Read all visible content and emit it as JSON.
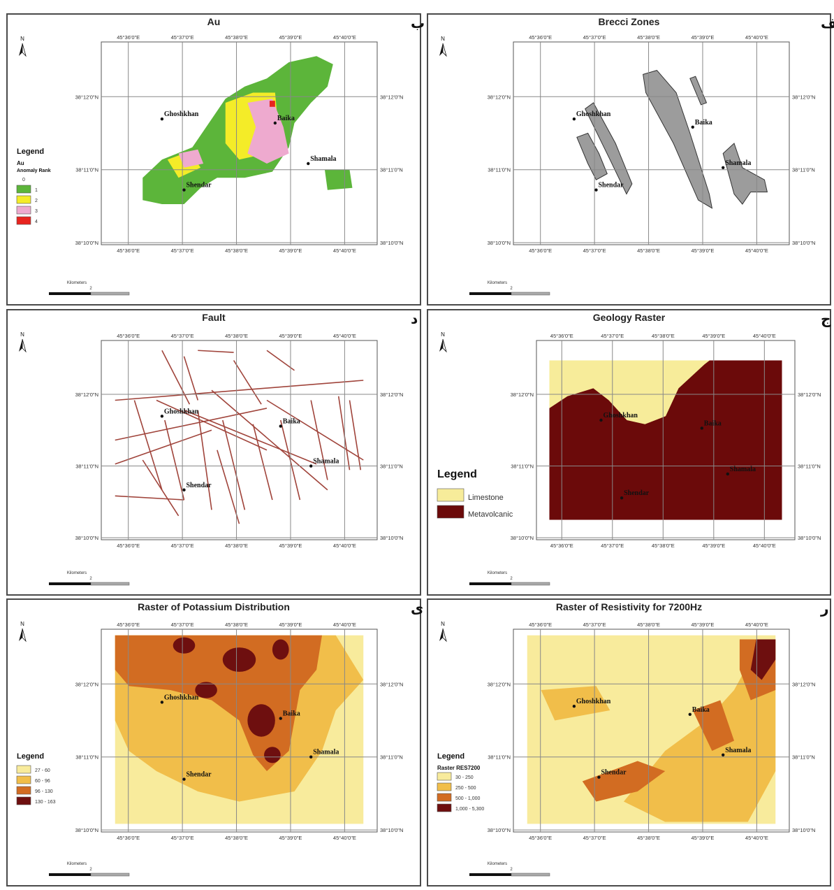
{
  "panels": [
    {
      "id": "au",
      "title": "Au",
      "letter": "ب",
      "x_ticks": [
        "45°36'0\"E",
        "45°37'0\"E",
        "45°38'0\"E",
        "45°39'0\"E",
        "45°40'0\"E"
      ],
      "y_ticks": [
        "38°12'0\"N",
        "38°11'0\"N",
        "38°10'0\"N"
      ],
      "towns": [
        "Ghoshkhan",
        "Baika",
        "Shamala",
        "Shendar"
      ],
      "north_label": "N",
      "scalebar_label": "Kilometers",
      "scalebar_value": "2",
      "legend": {
        "title": "Legend",
        "subtitle": "Au",
        "subtitle2": "Anomaly Rank",
        "items": [
          {
            "label": "0",
            "color": ""
          },
          {
            "label": "1",
            "color": "#5cb53a"
          },
          {
            "label": "2",
            "color": "#f4ec28"
          },
          {
            "label": "3",
            "color": "#eeaacf"
          },
          {
            "label": "4",
            "color": "#e8241f"
          }
        ]
      }
    },
    {
      "id": "breccia",
      "title": "Brecci Zones",
      "letter": "الف",
      "x_ticks": [
        "45°36'0\"E",
        "45°37'0\"E",
        "45°38'0\"E",
        "45°39'0\"E",
        "45°40'0\"E"
      ],
      "y_ticks": [
        "38°12'0\"N",
        "38°11'0\"N",
        "38°10'0\"N"
      ],
      "towns": [
        "Ghoshkhan",
        "Baika",
        "Shamala",
        "Shendar"
      ],
      "north_label": "N",
      "scalebar_label": "Kilometers",
      "scalebar_value": "2",
      "fill_color": "#9c9c9c"
    },
    {
      "id": "fault",
      "title": "Fault",
      "letter": "د",
      "x_ticks": [
        "45°36'0\"E",
        "45°37'0\"E",
        "45°38'0\"E",
        "45°39'0\"E",
        "45°40'0\"E"
      ],
      "y_ticks": [
        "38°12'0\"N",
        "38°11'0\"N",
        "38°10'0\"N"
      ],
      "towns": [
        "Ghoshkhan",
        "Baika",
        "Shamala",
        "Shendar"
      ],
      "north_label": "N",
      "scalebar_label": "Kilometers",
      "scalebar_value": "2",
      "line_color": "#a0443b"
    },
    {
      "id": "geology",
      "title": "Geology Raster",
      "letter": "ج",
      "x_ticks": [
        "45°36'0\"E",
        "45°37'0\"E",
        "45°38'0\"E",
        "45°39'0\"E",
        "45°40'0\"E"
      ],
      "y_ticks": [
        "38°12'0\"N",
        "38°11'0\"N",
        "38°10'0\"N"
      ],
      "towns": [
        "Ghoshkhan",
        "Baika",
        "Shamala",
        "Shendar"
      ],
      "north_label": "N",
      "scalebar_label": "Kilometers",
      "scalebar_value": "2",
      "legend": {
        "title": "Legend",
        "items": [
          {
            "label": "Limestone",
            "color": "#f7ec9a"
          },
          {
            "label": "Metavolcanic",
            "color": "#6b0a0a"
          }
        ]
      }
    },
    {
      "id": "potassium",
      "title": "Raster of Potassium Distribution",
      "letter": "ى",
      "x_ticks": [
        "45°36'0\"E",
        "45°37'0\"E",
        "45°38'0\"E",
        "45°39'0\"E",
        "45°40'0\"E"
      ],
      "y_ticks": [
        "38°12'0\"N",
        "38°11'0\"N",
        "38°10'0\"N"
      ],
      "towns": [
        "Ghoshkhan",
        "Baika",
        "Shamala",
        "Shendar"
      ],
      "north_label": "N",
      "scalebar_label": "Kilometers",
      "scalebar_value": "2",
      "legend": {
        "title": "Legend",
        "items": [
          {
            "label": "27 - 60",
            "color": "#f8eb9c"
          },
          {
            "label": "60 - 96",
            "color": "#f1be4a"
          },
          {
            "label": "96 - 130",
            "color": "#d26c22"
          },
          {
            "label": "130 - 163",
            "color": "#6e0f0f"
          }
        ]
      }
    },
    {
      "id": "resistivity",
      "title": "Raster of Resistivity for 7200Hz",
      "letter": "ر",
      "x_ticks": [
        "45°36'0\"E",
        "45°37'0\"E",
        "45°38'0\"E",
        "45°39'0\"E",
        "45°40'0\"E"
      ],
      "y_ticks": [
        "38°12'0\"N",
        "38°11'0\"N",
        "38°10'0\"N"
      ],
      "towns": [
        "Ghoshkhan",
        "Baika",
        "Shamala",
        "Shendar"
      ],
      "north_label": "N",
      "scalebar_label": "Kilometers",
      "scalebar_value": "2",
      "legend": {
        "title": "Legend",
        "subtitle": "Raster RES7200",
        "items": [
          {
            "label": "30 - 250",
            "color": "#f8eb9c"
          },
          {
            "label": "250 - 500",
            "color": "#f1be4a"
          },
          {
            "label": "500 - 1,000",
            "color": "#d26c22"
          },
          {
            "label": "1,000 - 5,300",
            "color": "#6e0f0f"
          }
        ]
      }
    }
  ]
}
